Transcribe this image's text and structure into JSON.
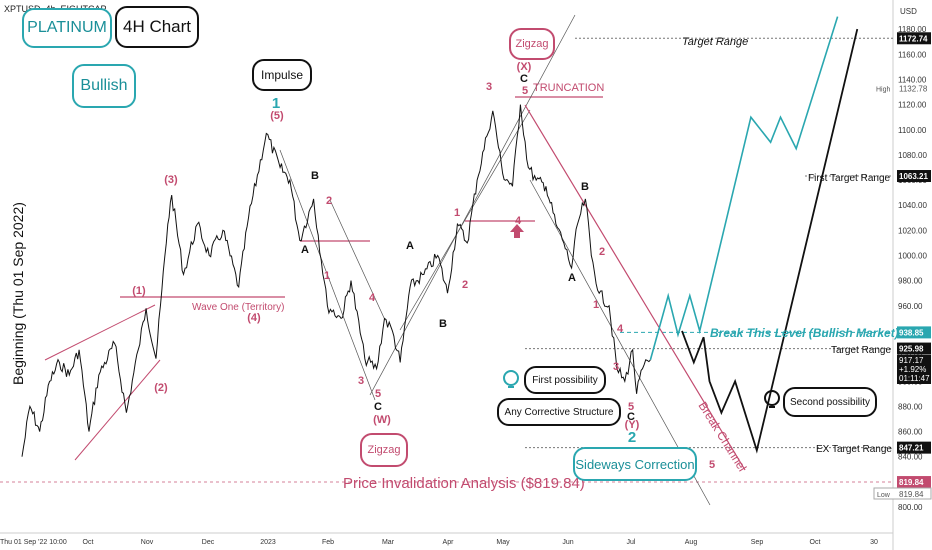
{
  "header": {
    "ticker": "XPTUSD, 4h, EIGHTCAP"
  },
  "badges": {
    "platinum": "PLATINUM",
    "timeframe": "4H Chart",
    "bullish": "Bullish",
    "impulse": "Impulse",
    "zigzag_top": "Zigzag",
    "zigzag_bottom": "Zigzag",
    "first_possibility": "First possibility",
    "any_corrective": "Any Corrective Structure",
    "second_possibility": "Second possibility",
    "sideways": "Sideways Correction"
  },
  "vertical_label": "Beginning (Thu 01 Sep 2022)",
  "annotations": {
    "target_range_top": "Target Range",
    "first_target_range": "First Target Range",
    "break_level": "Break This Level (Bullish Market)",
    "target_range": "Target Range",
    "ex_target_range": "EX Target Range",
    "invalidation": "Price Invalidation Analysis ($819.84)",
    "wave_one": "Wave One (Territory)",
    "truncation": "TRUNCATION",
    "break_channel": "Break Channel"
  },
  "colors": {
    "teal": "#2aa7b0",
    "pink": "#c24b6f",
    "black": "#111111",
    "price_line": "#111111",
    "grid_dash": "#888888"
  },
  "chart_data": {
    "type": "line",
    "title": "XPTUSD, 4h, EIGHTCAP",
    "xlabel": "",
    "ylabel": "",
    "ylim": [
      795,
      1200
    ],
    "x_tick_labels": [
      "Thu 01 Sep '22 10:00",
      "Oct",
      "Nov",
      "Dec",
      "2023",
      "Feb",
      "Mar",
      "Apr",
      "May",
      "Jun",
      "Jul",
      "Aug",
      "Sep",
      "Oct",
      "30"
    ],
    "y_tick_labels": [
      800,
      820,
      840,
      860,
      880,
      900,
      920,
      940,
      960,
      980,
      1000,
      1020,
      1040,
      1060,
      1080,
      1100,
      1120,
      1140,
      1160,
      1180
    ],
    "axis_unit": "USD",
    "price_path": [
      [
        "2022-09-01",
        840
      ],
      [
        "2022-09-05",
        880
      ],
      [
        "2022-09-10",
        860
      ],
      [
        "2022-09-15",
        900
      ],
      [
        "2022-09-20",
        915
      ],
      [
        "2022-09-25",
        905
      ],
      [
        "2022-09-30",
        925
      ],
      [
        "2022-10-05",
        860
      ],
      [
        "2022-10-10",
        905
      ],
      [
        "2022-10-18",
        930
      ],
      [
        "2022-10-24",
        875
      ],
      [
        "2022-10-30",
        925
      ],
      [
        "2022-11-03",
        958
      ],
      [
        "2022-11-08",
        918
      ],
      [
        "2022-11-14",
        1025
      ],
      [
        "2022-11-16",
        1048
      ],
      [
        "2022-11-22",
        985
      ],
      [
        "2022-11-29",
        1025
      ],
      [
        "2022-12-05",
        1000
      ],
      [
        "2022-12-12",
        1020
      ],
      [
        "2022-12-20",
        975
      ],
      [
        "2022-12-25",
        1030
      ],
      [
        "2023-01-03",
        1097
      ],
      [
        "2023-01-10",
        1070
      ],
      [
        "2023-01-15",
        1060
      ],
      [
        "2023-01-20",
        1012
      ],
      [
        "2023-01-27",
        1045
      ],
      [
        "2023-02-03",
        960
      ],
      [
        "2023-02-10",
        950
      ],
      [
        "2023-02-15",
        980
      ],
      [
        "2023-02-22",
        918
      ],
      [
        "2023-02-28",
        910
      ],
      [
        "2023-03-04",
        950
      ],
      [
        "2023-03-08",
        940
      ],
      [
        "2023-03-12",
        915
      ],
      [
        "2023-03-17",
        975
      ],
      [
        "2023-03-24",
        985
      ],
      [
        "2023-03-31",
        1000
      ],
      [
        "2023-04-05",
        970
      ],
      [
        "2023-04-10",
        1025
      ],
      [
        "2023-04-15",
        1010
      ],
      [
        "2023-04-20",
        1060
      ],
      [
        "2023-04-25",
        1095
      ],
      [
        "2023-04-28",
        1115
      ],
      [
        "2023-05-03",
        1065
      ],
      [
        "2023-05-08",
        1055
      ],
      [
        "2023-05-12",
        1120
      ],
      [
        "2023-05-16",
        1070
      ],
      [
        "2023-05-20",
        1060
      ],
      [
        "2023-05-25",
        1055
      ],
      [
        "2023-05-30",
        1025
      ],
      [
        "2023-06-03",
        1010
      ],
      [
        "2023-06-07",
        990
      ],
      [
        "2023-06-10",
        1025
      ],
      [
        "2023-06-14",
        1045
      ],
      [
        "2023-06-17",
        1000
      ],
      [
        "2023-06-21",
        970
      ],
      [
        "2023-06-26",
        960
      ],
      [
        "2023-06-30",
        910
      ],
      [
        "2023-07-04",
        900
      ],
      [
        "2023-07-08",
        925
      ],
      [
        "2023-07-10",
        890
      ],
      [
        "2023-07-13",
        910
      ],
      [
        "2023-07-17",
        917
      ]
    ],
    "series": [
      {
        "name": "Bullish projection (First possibility)",
        "points": [
          [
            "2023-07-17",
            917
          ],
          [
            "2023-07-26",
            968
          ],
          [
            "2023-07-31",
            937
          ],
          [
            "2023-08-06",
            968
          ],
          [
            "2023-08-11",
            940
          ],
          [
            "2023-09-06",
            1110
          ],
          [
            "2023-09-16",
            1090
          ],
          [
            "2023-09-21",
            1110
          ],
          [
            "2023-09-29",
            1085
          ],
          [
            "2023-10-20",
            1190
          ]
        ]
      },
      {
        "name": "Bearish projection (Second possibility)",
        "points": [
          [
            "2023-08-02",
            940
          ],
          [
            "2023-08-08",
            915
          ],
          [
            "2023-08-13",
            935
          ],
          [
            "2023-08-16",
            900
          ],
          [
            "2023-08-22",
            875
          ],
          [
            "2023-08-29",
            900
          ],
          [
            "2023-09-05",
            865
          ],
          [
            "2023-09-09",
            845
          ],
          [
            "2023-10-30",
            1180
          ]
        ]
      }
    ],
    "horizontal_levels": [
      {
        "label": "Target Range",
        "value": 1172.74
      },
      {
        "label": "First Target Range",
        "value": 1063.21
      },
      {
        "label": "Break This Level (Bullish Market)",
        "value": 938.85
      },
      {
        "label": "Target Range",
        "value": 925.98
      },
      {
        "label": "EX Target Range",
        "value": 847.21
      },
      {
        "label": "Price Invalidation Analysis ($819.84)",
        "value": 819.84
      }
    ],
    "price_tags": {
      "target_top": "1172.74",
      "high_label": "High",
      "high": "1132.78",
      "first_target": "1063.21",
      "break_level": "938.85",
      "target": "925.98",
      "last_price": "917.17",
      "change": "+1.92%",
      "countdown": "01:11:47",
      "ex_target": "847.21",
      "invalidation": "819.84",
      "low_label": "Low",
      "low": "819.84"
    },
    "wave_labels": [
      {
        "t": "(1)",
        "c": "pink"
      },
      {
        "t": "(2)",
        "c": "pink"
      },
      {
        "t": "(3)",
        "c": "pink"
      },
      {
        "t": "(4)",
        "c": "pink"
      },
      {
        "t": "(5)",
        "c": "pink"
      },
      {
        "t": "1",
        "c": "teal"
      },
      {
        "t": "B",
        "c": "black"
      },
      {
        "t": "2",
        "c": "pink"
      },
      {
        "t": "A",
        "c": "black"
      },
      {
        "t": "1",
        "c": "pink"
      },
      {
        "t": "4",
        "c": "pink"
      },
      {
        "t": "3",
        "c": "pink"
      },
      {
        "t": "5",
        "c": "pink"
      },
      {
        "t": "C",
        "c": "black"
      },
      {
        "t": "(W)",
        "c": "pink"
      },
      {
        "t": "A",
        "c": "black"
      },
      {
        "t": "2",
        "c": "pink"
      },
      {
        "t": "B",
        "c": "black"
      },
      {
        "t": "1",
        "c": "pink"
      },
      {
        "t": "3",
        "c": "pink"
      },
      {
        "t": "4",
        "c": "pink"
      },
      {
        "t": "(X)",
        "c": "pink"
      },
      {
        "t": "C",
        "c": "black"
      },
      {
        "t": "5",
        "c": "pink"
      },
      {
        "t": "B",
        "c": "black"
      },
      {
        "t": "A",
        "c": "black"
      },
      {
        "t": "2",
        "c": "pink"
      },
      {
        "t": "1",
        "c": "pink"
      },
      {
        "t": "4",
        "c": "pink"
      },
      {
        "t": "3",
        "c": "pink"
      },
      {
        "t": "5",
        "c": "pink"
      },
      {
        "t": "C",
        "c": "black"
      },
      {
        "t": "(Y)",
        "c": "pink"
      },
      {
        "t": "2",
        "c": "teal"
      },
      {
        "t": "5",
        "c": "pink"
      }
    ],
    "grid": false,
    "legend": "none"
  }
}
